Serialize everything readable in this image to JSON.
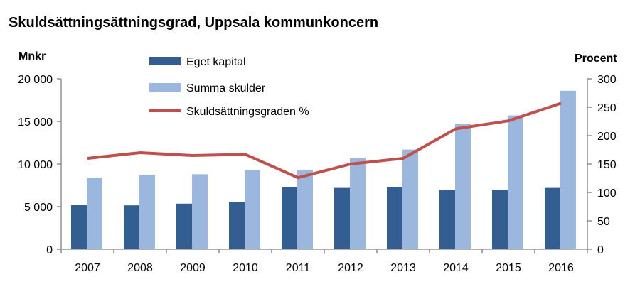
{
  "chart_data": {
    "type": "bar",
    "title": "Skuldsättningsättningsgrad, Uppsala kommunkoncern",
    "ylabel_left": "Mnkr",
    "ylabel_right": "Procent",
    "categories": [
      "2007",
      "2008",
      "2009",
      "2010",
      "2011",
      "2012",
      "2013",
      "2014",
      "2015",
      "2016"
    ],
    "ylim_left": [
      0,
      20000
    ],
    "ylim_right": [
      0,
      300
    ],
    "yticks_left": [
      "0",
      "5 000",
      "10 000",
      "15 000",
      "20 000"
    ],
    "yticks_right": [
      "0",
      "50",
      "100",
      "150",
      "200",
      "250",
      "300"
    ],
    "grid": false,
    "legend_position": "top-left",
    "series": [
      {
        "name": "Eget kapital",
        "type": "bar",
        "axis": "left",
        "color": "#335e91",
        "values": [
          5200,
          5150,
          5350,
          5550,
          7250,
          7200,
          7300,
          6950,
          6950,
          7200
        ]
      },
      {
        "name": "Summa skulder",
        "type": "bar",
        "axis": "left",
        "color": "#9bb7dd",
        "values": [
          8400,
          8750,
          8800,
          9300,
          9300,
          10700,
          11700,
          14700,
          15700,
          18600
        ]
      },
      {
        "name": "Skuldsättningsgraden %",
        "type": "line",
        "axis": "right",
        "color": "#c0504d",
        "values": [
          160,
          170,
          165,
          167,
          126,
          150,
          160,
          212,
          226,
          257
        ]
      }
    ]
  }
}
